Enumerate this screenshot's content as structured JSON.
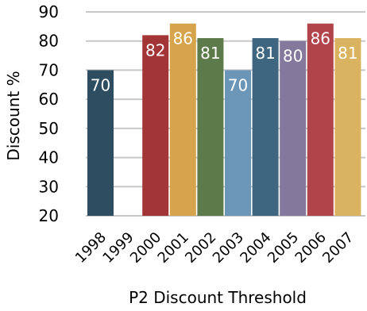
{
  "chart_data": {
    "type": "bar",
    "title": "",
    "xlabel": "P2 Discount Threshold",
    "ylabel": "Discount %",
    "categories": [
      "1998",
      "1999",
      "2000",
      "2001",
      "2002",
      "2003",
      "2004",
      "2005",
      "2006",
      "2007"
    ],
    "values": [
      70,
      20,
      82,
      86,
      81,
      70,
      81,
      80,
      86,
      81
    ],
    "data_labels": [
      "70",
      "",
      "82",
      "86",
      "81",
      "70",
      "81",
      "80",
      "86",
      "81"
    ],
    "ylim": [
      20,
      90
    ],
    "yticks": [
      "20",
      "30",
      "40",
      "50",
      "60",
      "70",
      "80",
      "90"
    ],
    "grid": true,
    "legend": "none",
    "colors": [
      "#2e4d60",
      "#ffffff",
      "#a23535",
      "#d6a44a",
      "#5d7a4a",
      "#6b96b8",
      "#3f6680",
      "#84789c",
      "#b1434b",
      "#d9b35f"
    ],
    "grid_color": "#c8c8c8"
  }
}
